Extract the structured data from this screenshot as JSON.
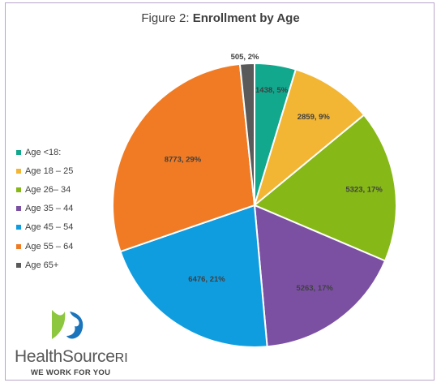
{
  "chart_data": {
    "type": "pie",
    "title_prefix": "Figure 2: ",
    "title_bold": "Enrollment by Age",
    "slices": [
      {
        "label": "Age <18:",
        "value": 1438,
        "percent": 5,
        "color": "#12a88e"
      },
      {
        "label": "Age 18 – 25",
        "value": 2859,
        "percent": 9,
        "color": "#f2b534"
      },
      {
        "label": "Age 26– 34",
        "value": 5323,
        "percent": 17,
        "color": "#86b817"
      },
      {
        "label": "Age 35 – 44",
        "value": 5263,
        "percent": 17,
        "color": "#7b50a3"
      },
      {
        "label": "Age 45 – 54",
        "value": 6476,
        "percent": 21,
        "color": "#109de0"
      },
      {
        "label": "Age 55 – 64",
        "value": 8773,
        "percent": 29,
        "color": "#f07b24"
      },
      {
        "label": "Age 65+",
        "value": 505,
        "percent": 2,
        "color": "#5a5a5a"
      }
    ],
    "data_labels": [
      "1438, 5%",
      "2859, 9%",
      "5323, 17%",
      "5263, 17%",
      "6476, 21%",
      "8773, 29%",
      "505, 2%"
    ],
    "legend_position": "left"
  },
  "logo": {
    "name_main": "HealthSource",
    "name_suffix": "RI",
    "tagline": "WE WORK FOR YOU",
    "colors": {
      "green": "#8dc63f",
      "blue": "#1a75bc"
    }
  }
}
